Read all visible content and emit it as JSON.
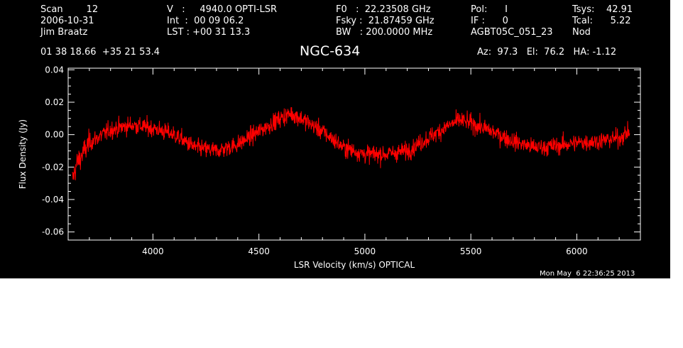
{
  "header": {
    "col1": [
      "Scan        12",
      "2006-10-31",
      "Jim Braatz"
    ],
    "col2": [
      "V   :     4940.0 OPTI-LSR",
      "Int  :  00 09 06.2",
      "LST : +00 31 13.3"
    ],
    "col3": [
      "F0   :  22.23508 GHz",
      "Fsky :  21.87459 GHz",
      "BW   : 200.0000 MHz"
    ],
    "col4": [
      "Pol:      I",
      "IF :      0",
      "AGBT05C_051_23"
    ],
    "col5": [
      "Tsys:    42.91",
      "Tcal:      5.22",
      "Nod"
    ],
    "coords": "01 38 18.66  +35 21 53.4",
    "source": "NGC-634",
    "azelha": "Az:  97.3   El:  76.2   HA: -1.12"
  },
  "timestamp": "Mon May  6 22:36:25 2013",
  "colors": {
    "background": "#000000",
    "axes": "#ffffff",
    "series": "#ff0000"
  },
  "chart_data": {
    "type": "line",
    "title": "NGC-634",
    "xlabel": "LSR Velocity (km/s) OPTICAL",
    "ylabel": "Flux Density (Jy)",
    "xlim": [
      3600,
      6300
    ],
    "ylim": [
      -0.065,
      0.041
    ],
    "xticks": [
      4000,
      4500,
      5000,
      5500,
      6000
    ],
    "xtick_labels": [
      "4000",
      "4500",
      "5000",
      "5500",
      "6000"
    ],
    "yticks": [
      -0.06,
      -0.04,
      -0.02,
      0.0,
      0.02,
      0.04
    ],
    "ytick_labels": [
      "-0.06",
      "-0.04",
      "-0.02",
      "0.00",
      "0.02",
      "0.04"
    ],
    "grid": false,
    "series": [
      {
        "x": [
          3620,
          3640,
          3700,
          3800,
          3900,
          4000,
          4100,
          4200,
          4300,
          4400,
          4500,
          4600,
          4650,
          4700,
          4800,
          4900,
          5000,
          5100,
          5200,
          5300,
          5400,
          5450,
          5500,
          5600,
          5700,
          5800,
          5900,
          6000,
          6100,
          6200,
          6250
        ],
        "y": [
          -0.028,
          -0.018,
          -0.005,
          0.003,
          0.006,
          0.004,
          0.0,
          -0.008,
          -0.01,
          -0.006,
          0.002,
          0.01,
          0.013,
          0.01,
          0.002,
          -0.008,
          -0.012,
          -0.012,
          -0.01,
          -0.002,
          0.006,
          0.009,
          0.007,
          0.002,
          -0.004,
          -0.008,
          -0.007,
          -0.005,
          -0.004,
          -0.002,
          0.002
        ],
        "noise_amplitude": 0.007
      }
    ]
  }
}
